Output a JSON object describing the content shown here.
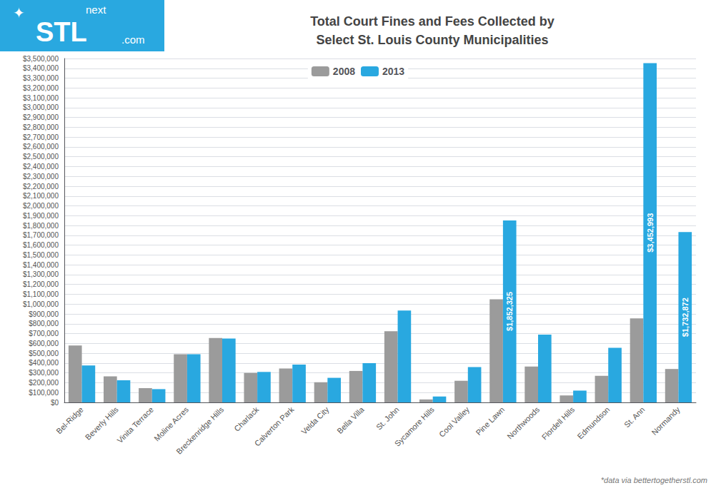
{
  "chart_data": {
    "type": "bar",
    "title": "Total Court Fines and Fees Collected by\nSelect St. Louis County Municipalities",
    "categories": [
      "Bel-Ridge",
      "Beverly Hills",
      "Vinita Terrace",
      "Moline Acres",
      "Breckenridge Hills",
      "Charlack",
      "Calverton Park",
      "Velda City",
      "Bella Villa",
      "St. John",
      "Sycamore Hills",
      "Cool Valley",
      "Pine Lawn",
      "Northwoods",
      "Flordell Hills",
      "Edmundson",
      "St. Ann",
      "Normandy"
    ],
    "series": [
      {
        "name": "2008",
        "color": "#9b9b9b",
        "values": [
          580000,
          265000,
          145000,
          490000,
          655000,
          300000,
          345000,
          205000,
          320000,
          725000,
          30000,
          220000,
          1050000,
          365000,
          70000,
          270000,
          855000,
          340000
        ]
      },
      {
        "name": "2013",
        "color": "#29a8e0",
        "values": [
          375000,
          225000,
          135000,
          490000,
          650000,
          310000,
          385000,
          250000,
          400000,
          935000,
          60000,
          360000,
          1852325,
          690000,
          120000,
          555000,
          3452993,
          1732872
        ],
        "value_labels": [
          null,
          null,
          null,
          null,
          null,
          null,
          null,
          null,
          null,
          null,
          null,
          null,
          "$1,852,325",
          null,
          null,
          null,
          "$3,452,993",
          "$1,732,872"
        ]
      }
    ],
    "ylim": [
      0,
      3500000
    ],
    "yticks": [
      {
        "value": 0,
        "label": "$0"
      },
      {
        "value": 100000,
        "label": "$100,000"
      },
      {
        "value": 200000,
        "label": "$200,000"
      },
      {
        "value": 300000,
        "label": "$300,000"
      },
      {
        "value": 400000,
        "label": "$400,000"
      },
      {
        "value": 500000,
        "label": "$500,000"
      },
      {
        "value": 600000,
        "label": "$600,000"
      },
      {
        "value": 700000,
        "label": "$700,000"
      },
      {
        "value": 800000,
        "label": "$800,000"
      },
      {
        "value": 900000,
        "label": "$900,000"
      },
      {
        "value": 1000000,
        "label": "$1,000,000"
      },
      {
        "value": 1100000,
        "label": "$1,100,000"
      },
      {
        "value": 1200000,
        "label": "$1,200,000"
      },
      {
        "value": 1300000,
        "label": "$1,300,000"
      },
      {
        "value": 1400000,
        "label": "$1,400,000"
      },
      {
        "value": 1500000,
        "label": "$1,500,000"
      },
      {
        "value": 1600000,
        "label": "$1,600,000"
      },
      {
        "value": 1700000,
        "label": "$1,700,000"
      },
      {
        "value": 1800000,
        "label": "$1,800,000"
      },
      {
        "value": 1900000,
        "label": "$1,900,000"
      },
      {
        "value": 2000000,
        "label": "$2,000,000"
      },
      {
        "value": 2100000,
        "label": "$2,100,000"
      },
      {
        "value": 2200000,
        "label": "$2,200,000"
      },
      {
        "value": 2300000,
        "label": "$2,300,000"
      },
      {
        "value": 2400000,
        "label": "$2,400,000"
      },
      {
        "value": 2500000,
        "label": "$2,500,000"
      },
      {
        "value": 2600000,
        "label": "$2,600,000"
      },
      {
        "value": 2700000,
        "label": "$2,700,000"
      },
      {
        "value": 2800000,
        "label": "$2,800,000"
      },
      {
        "value": 2900000,
        "label": "$2,900,000"
      },
      {
        "value": 3000000,
        "label": "$3,000,000"
      },
      {
        "value": 3100000,
        "label": "$3,100,000"
      },
      {
        "value": 3200000,
        "label": "$3,200,000"
      },
      {
        "value": 3300000,
        "label": "$3,300,000"
      },
      {
        "value": 3400000,
        "label": "$3,400,000"
      },
      {
        "value": 3500000,
        "label": "$3,500,000"
      }
    ],
    "grid": true,
    "legend": "upper center",
    "annotations": [
      "✦",
      "next",
      "STL",
      ".com",
      "*data via bettertogetherstl.com"
    ]
  }
}
